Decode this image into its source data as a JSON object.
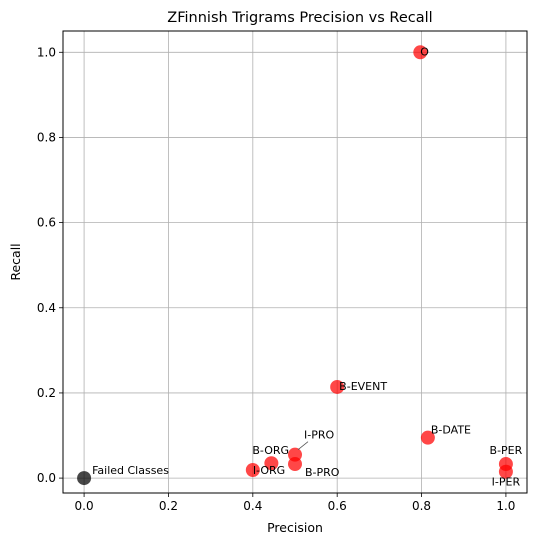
{
  "chart_data": {
    "type": "scatter",
    "title": "ZFinnish Trigrams Precision vs Recall",
    "xlabel": "Precision",
    "ylabel": "Recall",
    "xlim": [
      -0.05,
      1.05
    ],
    "ylim": [
      -0.035,
      1.05
    ],
    "xticks": [
      0.0,
      0.2,
      0.4,
      0.6,
      0.8,
      1.0
    ],
    "yticks": [
      0.0,
      0.2,
      0.4,
      0.6,
      0.8,
      1.0
    ],
    "xtick_labels": [
      "0.0",
      "0.2",
      "0.4",
      "0.6",
      "0.8",
      "1.0"
    ],
    "ytick_labels": [
      "0.0",
      "0.2",
      "0.4",
      "0.6",
      "0.8",
      "1.0"
    ],
    "grid": true,
    "legend": "none",
    "colors": {
      "success": "#ff0000",
      "failed": "#000000",
      "grid": "#b0b0b0"
    },
    "points": [
      {
        "label": "O",
        "x": 0.797,
        "y": 1.0,
        "status": "success"
      },
      {
        "label": "B-EVENT",
        "x": 0.6,
        "y": 0.214,
        "status": "success"
      },
      {
        "label": "B-DATE",
        "x": 0.815,
        "y": 0.095,
        "status": "success"
      },
      {
        "label": "I-PRO",
        "x": 0.5,
        "y": 0.055,
        "status": "success"
      },
      {
        "label": "B-ORG",
        "x": 0.444,
        "y": 0.035,
        "status": "success"
      },
      {
        "label": "B-PRO",
        "x": 0.5,
        "y": 0.033,
        "status": "success"
      },
      {
        "label": "I-ORG",
        "x": 0.4,
        "y": 0.019,
        "status": "success"
      },
      {
        "label": "B-PER",
        "x": 1.0,
        "y": 0.033,
        "status": "success"
      },
      {
        "label": "I-PER",
        "x": 1.0,
        "y": 0.015,
        "status": "success"
      },
      {
        "label": "Failed Classes",
        "x": 0.0,
        "y": 0.0,
        "status": "failed"
      }
    ]
  }
}
